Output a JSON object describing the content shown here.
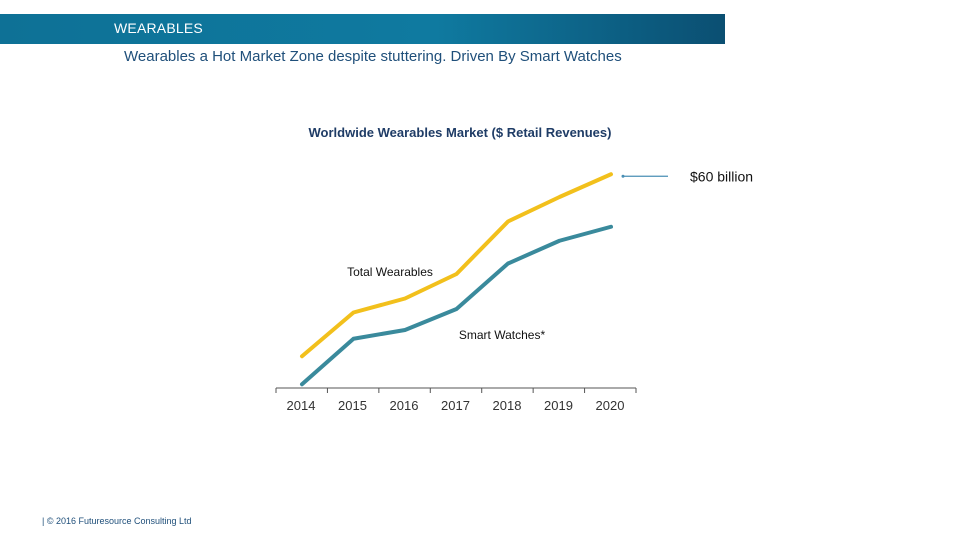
{
  "header": {
    "title": "WEARABLES"
  },
  "subtitle": "Wearables a Hot Market Zone despite stuttering. Driven By Smart Watches",
  "footer": "| © 2016 Futuresource Consulting Ltd",
  "colors": {
    "header": "#0e7196",
    "total": "#f2c01c",
    "watches": "#3a8a9c",
    "axis": "#555555",
    "callout": "#4a8fb5"
  },
  "chart_data": {
    "type": "line",
    "title": "Worldwide Wearables Market ($ Retail Revenues)",
    "xlabel": "",
    "ylabel": "",
    "categories": [
      "2014",
      "2015",
      "2016",
      "2017",
      "2018",
      "2019",
      "2020"
    ],
    "ylim": [
      0,
      60
    ],
    "series": [
      {
        "name": "Total Wearables",
        "values": [
          8.5,
          21,
          25,
          32,
          47,
          54,
          60.5
        ]
      },
      {
        "name": "Smart Watches*",
        "values": [
          0.5,
          13.5,
          16,
          22,
          35,
          41.5,
          45.5
        ]
      }
    ],
    "annotation": "$60 billion",
    "grid": false
  }
}
